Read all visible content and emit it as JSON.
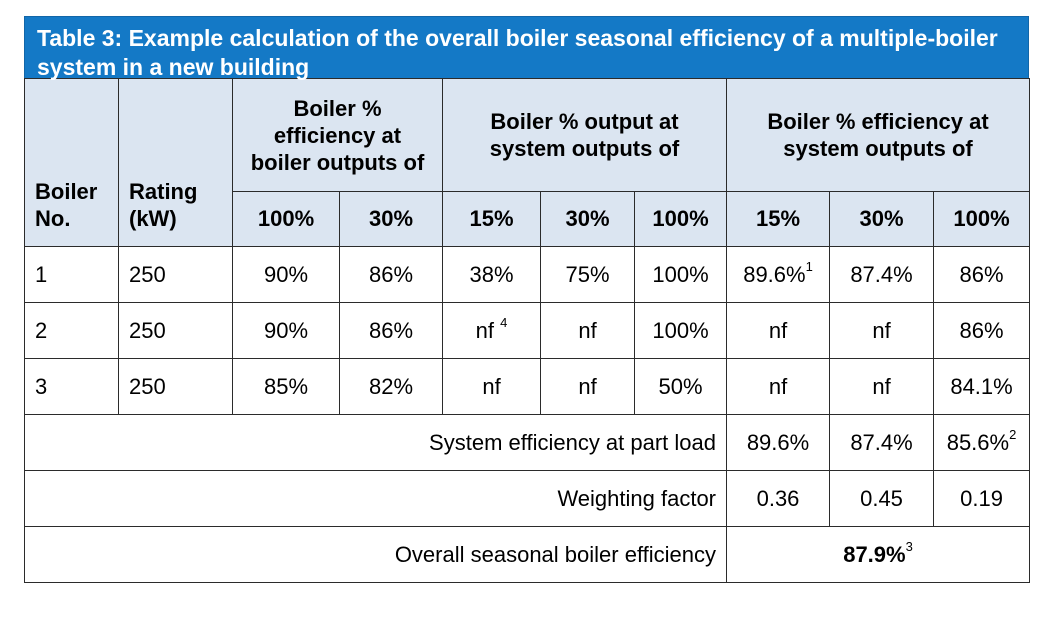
{
  "title": "Table 3: Example calculation of the overall boiler seasonal efficiency of a multiple-boiler system in a new building",
  "headers": {
    "boiler_no": "Boiler No.",
    "rating": "Rating (kW)",
    "group1": "Boiler % efficiency at boiler outputs of",
    "group2": "Boiler % output at system outputs of",
    "group3": "Boiler % efficiency at system outputs of",
    "sub": [
      "100%",
      "30%",
      "15%",
      "30%",
      "100%",
      "15%",
      "30%",
      "100%"
    ]
  },
  "rows": [
    {
      "no": "1",
      "rating": "250",
      "c1": "90%",
      "c2": "86%",
      "c3": "38%",
      "c3_note": "",
      "c4": "75%",
      "c5": "100%",
      "c6": "89.6%",
      "c6_note": "1",
      "c7": "87.4%",
      "c8": "86%"
    },
    {
      "no": "2",
      "rating": "250",
      "c1": "90%",
      "c2": "86%",
      "c3": "nf",
      "c3_note": "4",
      "c4": "nf",
      "c5": "100%",
      "c6": "nf",
      "c6_note": "",
      "c7": "nf",
      "c8": "86%"
    },
    {
      "no": "3",
      "rating": "250",
      "c1": "85%",
      "c2": "82%",
      "c3": "nf",
      "c3_note": "",
      "c4": "nf",
      "c5": "50%",
      "c6": "nf",
      "c6_note": "",
      "c7": "nf",
      "c8": "84.1%"
    }
  ],
  "system": {
    "label": "System efficiency at part load",
    "v15": "89.6%",
    "v30": "87.4%",
    "v100": "85.6%",
    "v100_note": "2"
  },
  "weighting": {
    "label": "Weighting factor",
    "v15": "0.36",
    "v30": "0.45",
    "v100": "0.19"
  },
  "overall": {
    "label": "Overall seasonal boiler efficiency",
    "value": "87.9%",
    "note": "3"
  }
}
